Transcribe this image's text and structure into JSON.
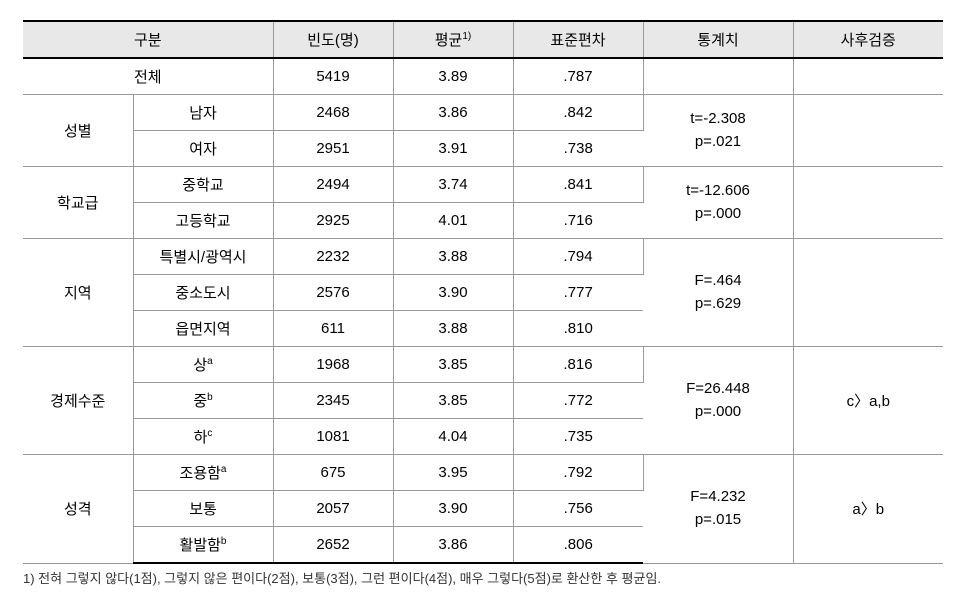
{
  "header": {
    "group": "구분",
    "freq": "빈도(명)",
    "mean": "평균",
    "mean_sup": "1)",
    "sd": "표준편차",
    "stat": "통계치",
    "post": "사후검증"
  },
  "total": {
    "label": "전체",
    "freq": "5419",
    "mean": "3.89",
    "sd": ".787"
  },
  "sections": [
    {
      "group": "성별",
      "rows": [
        {
          "label": "남자",
          "freq": "2468",
          "mean": "3.86",
          "sd": ".842"
        },
        {
          "label": "여자",
          "freq": "2951",
          "mean": "3.91",
          "sd": ".738"
        }
      ],
      "stat_line1": "t=-2.308",
      "stat_line2": "p=.021",
      "post": ""
    },
    {
      "group": "학교급",
      "rows": [
        {
          "label": "중학교",
          "freq": "2494",
          "mean": "3.74",
          "sd": ".841"
        },
        {
          "label": "고등학교",
          "freq": "2925",
          "mean": "4.01",
          "sd": ".716"
        }
      ],
      "stat_line1": "t=-12.606",
      "stat_line2": "p=.000",
      "post": ""
    },
    {
      "group": "지역",
      "rows": [
        {
          "label": "특별시/광역시",
          "freq": "2232",
          "mean": "3.88",
          "sd": ".794"
        },
        {
          "label": "중소도시",
          "freq": "2576",
          "mean": "3.90",
          "sd": ".777"
        },
        {
          "label": "읍면지역",
          "freq": "611",
          "mean": "3.88",
          "sd": ".810"
        }
      ],
      "stat_line1": "F=.464",
      "stat_line2": "p=.629",
      "post": ""
    },
    {
      "group": "경제수준",
      "rows": [
        {
          "label": "상",
          "sup": "a",
          "freq": "1968",
          "mean": "3.85",
          "sd": ".816"
        },
        {
          "label": "중",
          "sup": "b",
          "freq": "2345",
          "mean": "3.85",
          "sd": ".772"
        },
        {
          "label": "하",
          "sup": "c",
          "freq": "1081",
          "mean": "4.04",
          "sd": ".735"
        }
      ],
      "stat_line1": "F=26.448",
      "stat_line2": "p=.000",
      "post": "c〉a,b"
    },
    {
      "group": "성격",
      "rows": [
        {
          "label": "조용함",
          "sup": "a",
          "freq": "675",
          "mean": "3.95",
          "sd": ".792"
        },
        {
          "label": "보통",
          "freq": "2057",
          "mean": "3.90",
          "sd": ".756"
        },
        {
          "label": "활발함",
          "sup": "b",
          "freq": "2652",
          "mean": "3.86",
          "sd": ".806"
        }
      ],
      "stat_line1": "F=4.232",
      "stat_line2": "p=.015",
      "post": "a〉b"
    }
  ],
  "footnote": "1) 전혀 그렇지 않다(1점), 그렇지 않은 편이다(2점), 보통(3점), 그런 편이다(4점), 매우 그렇다(5점)로 환산한 후 평균임."
}
